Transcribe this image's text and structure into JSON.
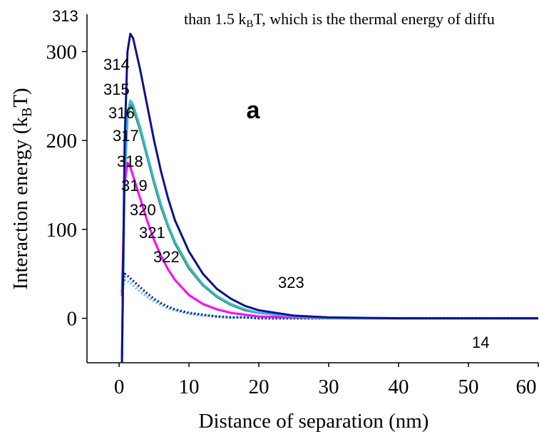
{
  "chart_data": {
    "type": "line",
    "header_text": {
      "text": "than 1.5 k",
      "sub": "B",
      "end": "T, which is the thermal energy of diffu"
    },
    "panel_label": "a",
    "line_numbers": [
      "313",
      "314",
      "315",
      "316",
      "317",
      "318",
      "319",
      "320",
      "321",
      "322",
      "323",
      "14"
    ],
    "x_label": "Distance of separation (nm)",
    "y_label": {
      "text": "Interaction energy (k",
      "sub": "B",
      "end": "T)"
    },
    "x": [
      0.4,
      0.8,
      1.2,
      1.6,
      2,
      3,
      4,
      5,
      6,
      7,
      8,
      10,
      12,
      14,
      16,
      18,
      20,
      25,
      30,
      40,
      50,
      60
    ],
    "series": [
      {
        "color": "#4fc3e8",
        "line_style": "dotted",
        "values": [
          35,
          43,
          42,
          40,
          37,
          30,
          24,
          19,
          15,
          11,
          9,
          5,
          3,
          2,
          1,
          1,
          0,
          0,
          0,
          0,
          0,
          0
        ]
      },
      {
        "color": "#1a1a8c",
        "line_style": "dotted",
        "values": [
          30,
          50,
          48,
          45,
          42,
          35,
          28,
          22,
          17,
          13,
          10,
          6,
          4,
          2,
          1,
          1,
          0,
          0,
          0,
          0,
          0,
          0
        ]
      },
      {
        "color": "#ff00ff",
        "line_style": "solid",
        "values": [
          25,
          150,
          175,
          170,
          160,
          135,
          110,
          88,
          70,
          55,
          43,
          26,
          16,
          10,
          6,
          4,
          2,
          1,
          0,
          0,
          0,
          0
        ]
      },
      {
        "color": "#2e8b2e",
        "line_style": "solid",
        "values": [
          -50,
          155,
          225,
          240,
          236,
          212,
          182,
          152,
          125,
          103,
          84,
          56,
          37,
          24,
          15,
          9,
          6,
          2,
          0,
          0,
          0,
          0
        ]
      },
      {
        "color": "#38b6e0",
        "line_style": "solid",
        "values": [
          -50,
          160,
          230,
          245,
          240,
          215,
          185,
          155,
          128,
          105,
          86,
          58,
          38,
          25,
          16,
          10,
          6,
          2,
          0,
          0,
          0,
          0
        ]
      },
      {
        "color": "#10108a",
        "line_style": "solid",
        "values": [
          -50,
          200,
          300,
          320,
          315,
          280,
          240,
          200,
          165,
          135,
          110,
          75,
          50,
          33,
          22,
          14,
          9,
          3,
          1,
          0,
          0,
          0
        ]
      }
    ],
    "xlim": [
      -4.6,
      60
    ],
    "ylim": [
      -50,
      342
    ],
    "xticks": [
      0,
      10,
      20,
      30,
      40,
      50,
      60
    ],
    "yticks": [
      0,
      100,
      200,
      300
    ]
  }
}
